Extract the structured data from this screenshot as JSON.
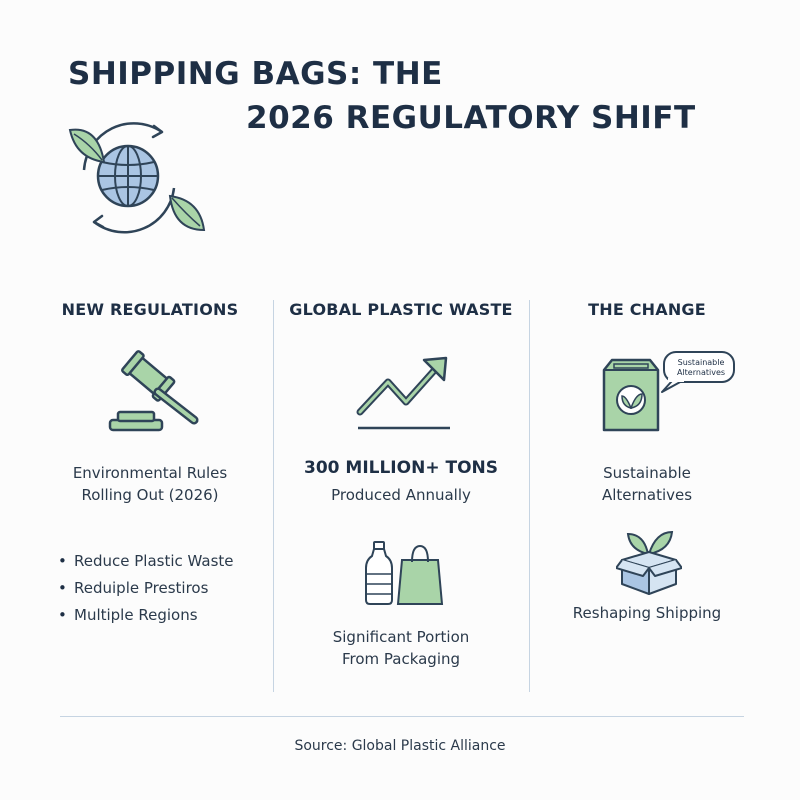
{
  "title": {
    "line1": "SHIPPING BAGS: THE",
    "line2": "2026 REGULATORY SHIFT"
  },
  "hero_icon": "globe-recycle-leaves-icon",
  "colors": {
    "title": "#1e2f45",
    "accent_green": "#a9d4a8",
    "accent_blue": "#aac5e3",
    "outline": "#2f4458",
    "divider": "#c6d4e2"
  },
  "columns": [
    {
      "heading": "NEW REGULATIONS",
      "icon": "gavel-icon",
      "text_line1": "Environmental Rules",
      "text_line2": "Rolling Out (2026)",
      "bullets": [
        "Reduce Plastic Waste",
        "Reduiple Prestiros",
        "Multiple Regions"
      ]
    },
    {
      "heading": "GLOBAL PLASTIC WASTE",
      "icon": "trend-up-icon",
      "stat": "300 MILLION+ TONS",
      "stat_caption": "Produced Annually",
      "icon2": "bottle-and-bag-icon",
      "text_line1": "Significant Portion",
      "text_line2": "From Packaging"
    },
    {
      "heading": "THE CHANGE",
      "icon": "eco-bag-icon",
      "bubble_line1": "Sustainable",
      "bubble_line2": "Alternatives",
      "text_line1": "Sustainable",
      "text_line2": "Alternatives",
      "icon2": "box-with-leaves-icon",
      "caption": "Reshaping Shipping"
    }
  ],
  "source": "Source: Global Plastic Alliance"
}
